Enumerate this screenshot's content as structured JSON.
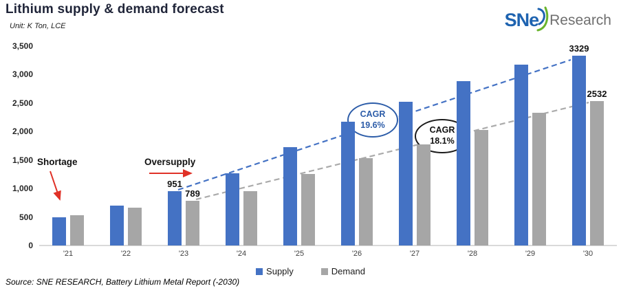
{
  "header": {
    "title": "Lithium supply & demand forecast",
    "unit": "Unit: K Ton, LCE"
  },
  "logo": {
    "brand": "SNe",
    "suffix": "Research",
    "brand_color": "#1e63b0",
    "swoosh_green": "#6ab42d"
  },
  "chart_data": {
    "type": "bar",
    "title": "Lithium supply & demand forecast",
    "unit_label": "Unit: K Ton, LCE",
    "categories": [
      "'21",
      "'22",
      "'23",
      "'24",
      "'25",
      "'26",
      "'27",
      "'28",
      "'29",
      "'30"
    ],
    "series": [
      {
        "name": "Supply",
        "color": "#4472C4",
        "values": [
          490,
          695,
          951,
          1265,
          1725,
          2170,
          2520,
          2885,
          3170,
          3329
        ]
      },
      {
        "name": "Demand",
        "color": "#A6A6A6",
        "values": [
          530,
          665,
          789,
          950,
          1260,
          1535,
          1770,
          2025,
          2325,
          2532
        ]
      }
    ],
    "label_points": [
      {
        "series": 0,
        "index": 2,
        "text": "951"
      },
      {
        "series": 1,
        "index": 2,
        "text": "789"
      },
      {
        "series": 0,
        "index": 9,
        "text": "3329"
      },
      {
        "series": 1,
        "index": 9,
        "text": "2532"
      }
    ],
    "ylim": [
      0,
      3500
    ],
    "yticks": [
      {
        "value": 0,
        "label": "0"
      },
      {
        "value": 500,
        "label": "500"
      },
      {
        "value": 1000,
        "label": "1,000"
      },
      {
        "value": 1500,
        "label": "1,500"
      },
      {
        "value": 2000,
        "label": "2,000"
      },
      {
        "value": 2500,
        "label": "2,500"
      },
      {
        "value": 3000,
        "label": "3,000"
      },
      {
        "value": 3500,
        "label": "3,500"
      }
    ],
    "grid": false,
    "legend_position": "bottom",
    "trendlines": [
      {
        "series": "Supply",
        "color": "#4472C4",
        "style": "dashed",
        "from_category": "'23",
        "to_category": "'30"
      },
      {
        "series": "Demand",
        "color": "#ABABAB",
        "style": "dashed",
        "from_category": "'23",
        "to_category": "'30"
      }
    ]
  },
  "annotations": {
    "shortage": "Shortage",
    "oversupply": "Oversupply",
    "arrow_color": "#E03127",
    "cagr_supply": {
      "line1": "CAGR",
      "line2": "19.6%",
      "color": "#2c5ca8"
    },
    "cagr_demand": {
      "line1": "CAGR",
      "line2": "18.1%",
      "color": "#1a1a1a"
    }
  },
  "legend": {
    "items": [
      {
        "label": "Supply",
        "color": "#4472C4"
      },
      {
        "label": "Demand",
        "color": "#A6A6A6"
      }
    ]
  },
  "source": "Source: SNE RESEARCH, Battery Lithium Metal Report (-2030)"
}
